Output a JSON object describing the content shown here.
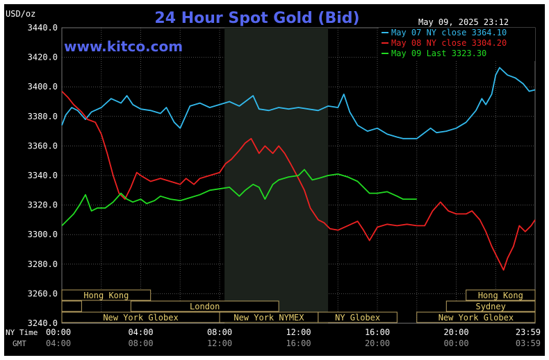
{
  "title": "24 Hour Spot Gold (Bid)",
  "unit_label": "USD/oz",
  "watermark": "www.kitco.com",
  "timestamp": "May 09, 2025 23:12",
  "legend": [
    {
      "text": "May 07 NY close 3364.10",
      "color": "#33bbee"
    },
    {
      "text": "May 08 NY close 3304.20",
      "color": "#ee2222"
    },
    {
      "text": "May 09 Last 3323.30",
      "color": "#22dd22"
    }
  ],
  "row_labels": {
    "ny": "NY Time",
    "gmt": "GMT"
  },
  "sessions": {
    "row1": [
      {
        "label": "Hong Kong",
        "start": 0,
        "end": 4.5
      },
      {
        "label": "Hong Kong",
        "start": 20.5,
        "end": 24
      }
    ],
    "row2": [
      {
        "label": "",
        "start": 0,
        "end": 1
      },
      {
        "label": "London",
        "start": 3.5,
        "end": 11.0
      },
      {
        "label": "Sydney",
        "start": 19.5,
        "end": 24
      }
    ],
    "row3": [
      {
        "label": "New York Globex",
        "start": 0,
        "end": 8.0
      },
      {
        "label": "New York NYMEX",
        "start": 8.0,
        "end": 13.0
      },
      {
        "label": "NY Globex",
        "start": 13.0,
        "end": 17.0
      },
      {
        "label": "New York Globex",
        "start": 18.0,
        "end": 24
      }
    ]
  },
  "chart_data": {
    "type": "line",
    "title": "24 Hour Spot Gold (Bid)",
    "ylabel": "USD/oz",
    "ylim": [
      3240,
      3440
    ],
    "yticks": [
      "3440.0",
      "3420.0",
      "3400.0",
      "3380.0",
      "3360.0",
      "3340.0",
      "3320.0",
      "3300.0",
      "3280.0",
      "3260.0",
      "3240.0"
    ],
    "xlim": [
      0,
      24
    ],
    "xticks_ny": [
      "00:00",
      "04:00",
      "08:00",
      "12:00",
      "16:00",
      "20:00",
      "23:59"
    ],
    "xticks_gmt": [
      "04:00",
      "08:00",
      "12:00",
      "16:00",
      "20:00",
      "00:00",
      "03:59"
    ],
    "shaded_region": [
      8.25,
      13.5
    ],
    "grid": true,
    "legend_position": "top-right",
    "series": [
      {
        "name": "May 07 NY close 3364.10",
        "color": "#33bbee",
        "points": [
          [
            0,
            3374
          ],
          [
            0.2,
            3381
          ],
          [
            0.5,
            3386
          ],
          [
            0.8,
            3384
          ],
          [
            1.2,
            3378
          ],
          [
            1.5,
            3383
          ],
          [
            2.0,
            3386
          ],
          [
            2.5,
            3392
          ],
          [
            3.0,
            3389
          ],
          [
            3.3,
            3394
          ],
          [
            3.6,
            3388
          ],
          [
            4.0,
            3385
          ],
          [
            4.5,
            3384
          ],
          [
            5.0,
            3382
          ],
          [
            5.3,
            3386
          ],
          [
            5.7,
            3376
          ],
          [
            6.0,
            3372
          ],
          [
            6.2,
            3378
          ],
          [
            6.5,
            3387
          ],
          [
            7.0,
            3389
          ],
          [
            7.5,
            3386
          ],
          [
            8.0,
            3388
          ],
          [
            8.5,
            3390
          ],
          [
            9.0,
            3387
          ],
          [
            9.3,
            3390
          ],
          [
            9.7,
            3394
          ],
          [
            10.0,
            3385
          ],
          [
            10.5,
            3384
          ],
          [
            11.0,
            3386
          ],
          [
            11.5,
            3385
          ],
          [
            12.0,
            3386
          ],
          [
            12.5,
            3385
          ],
          [
            13.0,
            3384
          ],
          [
            13.5,
            3387
          ],
          [
            14.0,
            3386
          ],
          [
            14.3,
            3395
          ],
          [
            14.6,
            3383
          ],
          [
            15.0,
            3374
          ],
          [
            15.5,
            3370
          ],
          [
            16.0,
            3372
          ],
          [
            16.5,
            3368
          ],
          [
            17.0,
            3366
          ],
          [
            17.3,
            3365
          ],
          [
            18.0,
            3365
          ],
          [
            18.3,
            3368
          ],
          [
            18.7,
            3372
          ],
          [
            19.0,
            3369
          ],
          [
            19.5,
            3370
          ],
          [
            20.0,
            3372
          ],
          [
            20.5,
            3376
          ],
          [
            21.0,
            3384
          ],
          [
            21.3,
            3392
          ],
          [
            21.5,
            3388
          ],
          [
            21.8,
            3395
          ],
          [
            22.0,
            3408
          ],
          [
            22.2,
            3413
          ],
          [
            22.6,
            3408
          ],
          [
            23.0,
            3406
          ],
          [
            23.4,
            3402
          ],
          [
            23.7,
            3397
          ],
          [
            24.0,
            3398
          ]
        ]
      },
      {
        "name": "May 08 NY close 3304.20",
        "color": "#ee2222",
        "points": [
          [
            0,
            3397
          ],
          [
            0.3,
            3393
          ],
          [
            0.6,
            3388
          ],
          [
            1.0,
            3383
          ],
          [
            1.3,
            3378
          ],
          [
            1.7,
            3376
          ],
          [
            2.0,
            3368
          ],
          [
            2.3,
            3355
          ],
          [
            2.6,
            3340
          ],
          [
            2.9,
            3328
          ],
          [
            3.2,
            3324
          ],
          [
            3.5,
            3332
          ],
          [
            3.8,
            3342
          ],
          [
            4.0,
            3340
          ],
          [
            4.5,
            3336
          ],
          [
            5.0,
            3338
          ],
          [
            5.5,
            3336
          ],
          [
            6.0,
            3334
          ],
          [
            6.3,
            3338
          ],
          [
            6.7,
            3334
          ],
          [
            7.0,
            3338
          ],
          [
            7.5,
            3340
          ],
          [
            8.0,
            3342
          ],
          [
            8.3,
            3348
          ],
          [
            8.6,
            3351
          ],
          [
            9.0,
            3357
          ],
          [
            9.3,
            3362
          ],
          [
            9.6,
            3365
          ],
          [
            10.0,
            3355
          ],
          [
            10.3,
            3360
          ],
          [
            10.7,
            3355
          ],
          [
            11.0,
            3360
          ],
          [
            11.3,
            3355
          ],
          [
            11.6,
            3348
          ],
          [
            12.0,
            3338
          ],
          [
            12.3,
            3330
          ],
          [
            12.6,
            3318
          ],
          [
            13.0,
            3310
          ],
          [
            13.3,
            3308
          ],
          [
            13.6,
            3304
          ],
          [
            14.0,
            3303
          ],
          [
            14.5,
            3306
          ],
          [
            15.0,
            3309
          ],
          [
            15.3,
            3303
          ],
          [
            15.6,
            3296
          ],
          [
            16.0,
            3305
          ],
          [
            16.5,
            3307
          ],
          [
            17.0,
            3306
          ],
          [
            17.5,
            3307
          ],
          [
            18.0,
            3306
          ],
          [
            18.4,
            3306
          ],
          [
            18.8,
            3316
          ],
          [
            19.2,
            3322
          ],
          [
            19.6,
            3316
          ],
          [
            20.0,
            3314
          ],
          [
            20.5,
            3314
          ],
          [
            20.8,
            3316
          ],
          [
            21.2,
            3310
          ],
          [
            21.5,
            3302
          ],
          [
            21.8,
            3292
          ],
          [
            22.1,
            3284
          ],
          [
            22.4,
            3276
          ],
          [
            22.6,
            3284
          ],
          [
            22.9,
            3292
          ],
          [
            23.2,
            3306
          ],
          [
            23.5,
            3302
          ],
          [
            23.8,
            3306
          ],
          [
            24.0,
            3310
          ]
        ]
      },
      {
        "name": "May 09 Last 3323.30",
        "color": "#22dd22",
        "points": [
          [
            0,
            3306
          ],
          [
            0.3,
            3310
          ],
          [
            0.6,
            3314
          ],
          [
            0.9,
            3320
          ],
          [
            1.2,
            3327
          ],
          [
            1.5,
            3316
          ],
          [
            1.8,
            3318
          ],
          [
            2.2,
            3318
          ],
          [
            2.6,
            3322
          ],
          [
            3.0,
            3328
          ],
          [
            3.3,
            3324
          ],
          [
            3.6,
            3322
          ],
          [
            4.0,
            3324
          ],
          [
            4.3,
            3321
          ],
          [
            4.7,
            3323
          ],
          [
            5.0,
            3326
          ],
          [
            5.5,
            3324
          ],
          [
            6.0,
            3323
          ],
          [
            6.5,
            3325
          ],
          [
            7.0,
            3327
          ],
          [
            7.5,
            3330
          ],
          [
            8.0,
            3331
          ],
          [
            8.5,
            3332
          ],
          [
            9.0,
            3326
          ],
          [
            9.3,
            3330
          ],
          [
            9.7,
            3334
          ],
          [
            10.0,
            3332
          ],
          [
            10.3,
            3324
          ],
          [
            10.7,
            3334
          ],
          [
            11.0,
            3337
          ],
          [
            11.5,
            3339
          ],
          [
            12.0,
            3340
          ],
          [
            12.3,
            3344
          ],
          [
            12.7,
            3337
          ],
          [
            13.0,
            3338
          ],
          [
            13.5,
            3340
          ],
          [
            14.0,
            3341
          ],
          [
            14.5,
            3339
          ],
          [
            15.0,
            3336
          ],
          [
            15.3,
            3332
          ],
          [
            15.6,
            3328
          ],
          [
            16.0,
            3328
          ],
          [
            16.5,
            3329
          ],
          [
            17.0,
            3326
          ],
          [
            17.3,
            3324
          ],
          [
            18.0,
            3324
          ]
        ]
      }
    ]
  }
}
